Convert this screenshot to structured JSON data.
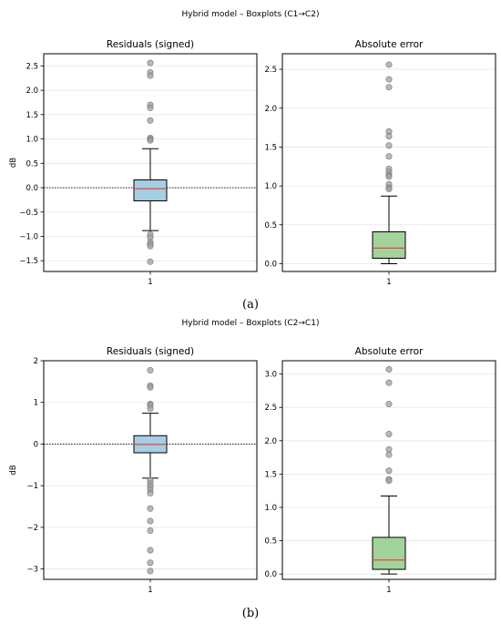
{
  "figures": [
    {
      "suptitle": "Hybrid model – Boxplots (C1→C2)",
      "caption": "(a)"
    },
    {
      "suptitle": "Hybrid model – Boxplots (C2→C1)",
      "caption": "(b)"
    }
  ],
  "colors": {
    "residual_box": "#a6cee3",
    "abs_box": "#a3d39c",
    "median": "#e8453c",
    "outlier": "#a0a0a0",
    "grid": "#e6e6e6"
  },
  "chart_data": [
    {
      "type": "boxplot",
      "title": "Residuals (signed)",
      "ylabel": "dB",
      "xlabel": "",
      "categories": [
        "1"
      ],
      "ylim": [
        -1.72,
        2.75
      ],
      "yticks": [
        -1.5,
        -1.0,
        -0.5,
        0.0,
        0.5,
        1.0,
        1.5,
        2.0,
        2.5
      ],
      "ytick_labels": [
        "−1.5",
        "−1.0",
        "−0.5",
        "0.0",
        "0.5",
        "1.0",
        "1.5",
        "2.0",
        "2.5"
      ],
      "grid": true,
      "zero_line": true,
      "box": {
        "whisker_low": -0.88,
        "q1": -0.27,
        "median": -0.02,
        "q3": 0.16,
        "whisker_high": 0.8
      },
      "outliers": [
        2.56,
        2.37,
        2.3,
        1.7,
        1.64,
        1.38,
        1.02,
        1.0,
        0.97,
        -0.96,
        -1.02,
        -1.12,
        -1.16,
        -1.2,
        -1.52
      ],
      "color": "#a6cee3"
    },
    {
      "type": "boxplot",
      "title": "Absolute error",
      "ylabel": "",
      "xlabel": "",
      "categories": [
        "1"
      ],
      "ylim": [
        -0.1,
        2.7
      ],
      "yticks": [
        0.0,
        0.5,
        1.0,
        1.5,
        2.0,
        2.5
      ],
      "ytick_labels": [
        "0.0",
        "0.5",
        "1.0",
        "1.5",
        "2.0",
        "2.5"
      ],
      "grid": true,
      "zero_line": false,
      "box": {
        "whisker_low": 0.0,
        "q1": 0.07,
        "median": 0.2,
        "q3": 0.41,
        "whisker_high": 0.87
      },
      "outliers": [
        2.56,
        2.37,
        2.27,
        1.7,
        1.64,
        1.52,
        1.38,
        1.22,
        1.18,
        1.14,
        1.12,
        1.02,
        0.98,
        0.96
      ],
      "color": "#a3d39c"
    },
    {
      "type": "boxplot",
      "title": "Residuals (signed)",
      "ylabel": "dB",
      "xlabel": "",
      "categories": [
        "1"
      ],
      "ylim": [
        -3.25,
        2.0
      ],
      "yticks": [
        -3,
        -2,
        -1,
        0,
        1,
        2
      ],
      "ytick_labels": [
        "−3",
        "−2",
        "−1",
        "0",
        "1",
        "2"
      ],
      "grid": true,
      "zero_line": true,
      "box": {
        "whisker_low": -0.82,
        "q1": -0.21,
        "median": -0.01,
        "q3": 0.2,
        "whisker_high": 0.74
      },
      "outliers": [
        1.77,
        1.4,
        1.36,
        0.96,
        0.93,
        0.85,
        -0.88,
        -0.95,
        -1.02,
        -1.1,
        -1.18,
        -1.55,
        -1.85,
        -2.08,
        -2.55,
        -2.85,
        -3.05
      ],
      "color": "#a6cee3"
    },
    {
      "type": "boxplot",
      "title": "Absolute error",
      "ylabel": "",
      "xlabel": "",
      "categories": [
        "1"
      ],
      "ylim": [
        -0.08,
        3.2
      ],
      "yticks": [
        0.0,
        0.5,
        1.0,
        1.5,
        2.0,
        2.5,
        3.0
      ],
      "ytick_labels": [
        "0.0",
        "0.5",
        "1.0",
        "1.5",
        "2.0",
        "2.5",
        "3.0"
      ],
      "grid": true,
      "zero_line": false,
      "box": {
        "whisker_low": 0.0,
        "q1": 0.07,
        "median": 0.21,
        "q3": 0.55,
        "whisker_high": 1.17
      },
      "outliers": [
        3.07,
        2.87,
        2.55,
        2.1,
        1.87,
        1.79,
        1.55,
        1.42,
        1.4
      ],
      "color": "#a3d39c"
    }
  ]
}
